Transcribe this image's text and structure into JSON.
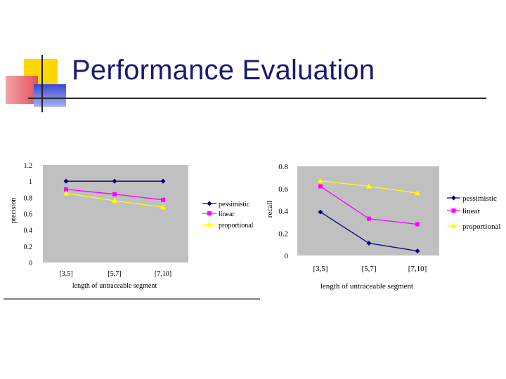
{
  "slide": {
    "title": "Performance Evaluation"
  },
  "colors": {
    "title": "#1a1a6e",
    "plot_bg": "#c0c0c0",
    "pessimistic": "#000080",
    "linear": "#ff00ff",
    "proportional": "#ffff00",
    "deco_yellow": "#ffd700",
    "deco_red": "#e8505b",
    "deco_blue": "#4a5adc"
  },
  "chart_data": [
    {
      "type": "line",
      "categories": [
        "[3,5]",
        "[5,7]",
        "[7,10]"
      ],
      "series": [
        {
          "name": "pessimistic",
          "values": [
            1.0,
            1.0,
            1.0
          ],
          "marker": "diamond"
        },
        {
          "name": "linear",
          "values": [
            0.9,
            0.84,
            0.77
          ],
          "marker": "square"
        },
        {
          "name": "proportional",
          "values": [
            0.85,
            0.76,
            0.68
          ],
          "marker": "triangle"
        }
      ],
      "title": "",
      "xlabel": "length of untraceable segment",
      "ylabel": "precision",
      "ylim": [
        0,
        1.2
      ],
      "yticks": [
        "0",
        "0.2",
        "0.4",
        "0.6",
        "0.8",
        "1",
        "1.2"
      ],
      "grid": false,
      "legend": "right"
    },
    {
      "type": "line",
      "categories": [
        "[3,5]",
        "[5,7]",
        "[7,10]"
      ],
      "series": [
        {
          "name": "pessimistic",
          "values": [
            0.39,
            0.11,
            0.04
          ],
          "marker": "diamond"
        },
        {
          "name": "linear",
          "values": [
            0.62,
            0.33,
            0.28
          ],
          "marker": "square"
        },
        {
          "name": "proportional",
          "values": [
            0.67,
            0.62,
            0.56
          ],
          "marker": "triangle"
        }
      ],
      "title": "",
      "xlabel": "length of untraceable segment",
      "ylabel": "recall",
      "ylim": [
        0,
        0.8
      ],
      "yticks": [
        "0",
        "0.2",
        "0.4",
        "0.6",
        "0.8"
      ],
      "grid": false,
      "legend": "right"
    }
  ]
}
